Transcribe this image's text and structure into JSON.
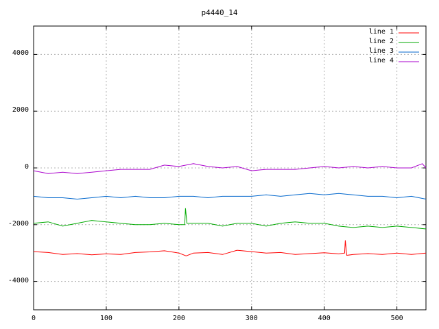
{
  "chart_data": {
    "type": "line",
    "title": "p4440_14",
    "xlabel": "",
    "ylabel": "",
    "xlim": [
      0,
      540
    ],
    "ylim": [
      -5000,
      5000
    ],
    "x_ticks": [
      "0",
      "100",
      "200",
      "300",
      "400",
      "500"
    ],
    "y_ticks": [
      "-4000",
      "-2000",
      "0",
      "2000",
      "4000"
    ],
    "grid": true,
    "legend_position": "top-right",
    "series": [
      {
        "name": "line 1",
        "color": "#ff0000",
        "x": [
          0,
          20,
          40,
          60,
          80,
          100,
          120,
          140,
          160,
          180,
          200,
          210,
          220,
          240,
          260,
          280,
          300,
          320,
          340,
          360,
          380,
          400,
          420,
          428,
          429,
          431,
          440,
          460,
          480,
          500,
          520,
          540
        ],
        "y": [
          -2950,
          -2980,
          -3050,
          -3020,
          -3060,
          -3030,
          -3050,
          -2980,
          -2960,
          -2920,
          -3000,
          -3100,
          -3000,
          -2980,
          -3050,
          -2900,
          -2950,
          -3000,
          -2980,
          -3050,
          -3020,
          -2990,
          -3030,
          -3000,
          -2550,
          -3080,
          -3050,
          -3020,
          -3050,
          -3000,
          -3050,
          -3000
        ]
      },
      {
        "name": "line 2",
        "color": "#00aa00",
        "x": [
          0,
          20,
          40,
          60,
          80,
          100,
          120,
          140,
          160,
          180,
          200,
          208,
          209,
          211,
          220,
          240,
          260,
          280,
          300,
          320,
          340,
          360,
          380,
          400,
          420,
          440,
          460,
          480,
          500,
          520,
          540
        ],
        "y": [
          -1950,
          -1900,
          -2050,
          -1950,
          -1850,
          -1900,
          -1950,
          -2000,
          -2000,
          -1950,
          -2000,
          -2000,
          -1420,
          -1950,
          -1950,
          -1950,
          -2050,
          -1950,
          -1950,
          -2050,
          -1950,
          -1900,
          -1950,
          -1950,
          -2050,
          -2100,
          -2050,
          -2100,
          -2050,
          -2100,
          -2150
        ]
      },
      {
        "name": "line 3",
        "color": "#0066cc",
        "x": [
          0,
          20,
          40,
          60,
          80,
          100,
          120,
          140,
          160,
          180,
          200,
          220,
          240,
          260,
          280,
          300,
          320,
          340,
          360,
          380,
          400,
          420,
          440,
          460,
          480,
          500,
          520,
          540
        ],
        "y": [
          -1000,
          -1050,
          -1050,
          -1100,
          -1050,
          -1000,
          -1050,
          -1000,
          -1050,
          -1050,
          -1000,
          -1000,
          -1050,
          -1000,
          -1000,
          -1000,
          -950,
          -1000,
          -950,
          -900,
          -950,
          -900,
          -950,
          -1000,
          -1000,
          -1050,
          -1000,
          -1100
        ]
      },
      {
        "name": "line 4",
        "color": "#aa00cc",
        "x": [
          0,
          20,
          40,
          60,
          80,
          100,
          120,
          140,
          160,
          180,
          200,
          220,
          240,
          260,
          280,
          300,
          320,
          340,
          360,
          380,
          400,
          420,
          440,
          460,
          480,
          500,
          520,
          535,
          540
        ],
        "y": [
          -100,
          -200,
          -150,
          -200,
          -150,
          -100,
          -50,
          -50,
          -50,
          100,
          50,
          150,
          50,
          0,
          50,
          -100,
          -50,
          -50,
          -50,
          0,
          50,
          0,
          50,
          0,
          50,
          0,
          0,
          150,
          0
        ]
      }
    ]
  }
}
